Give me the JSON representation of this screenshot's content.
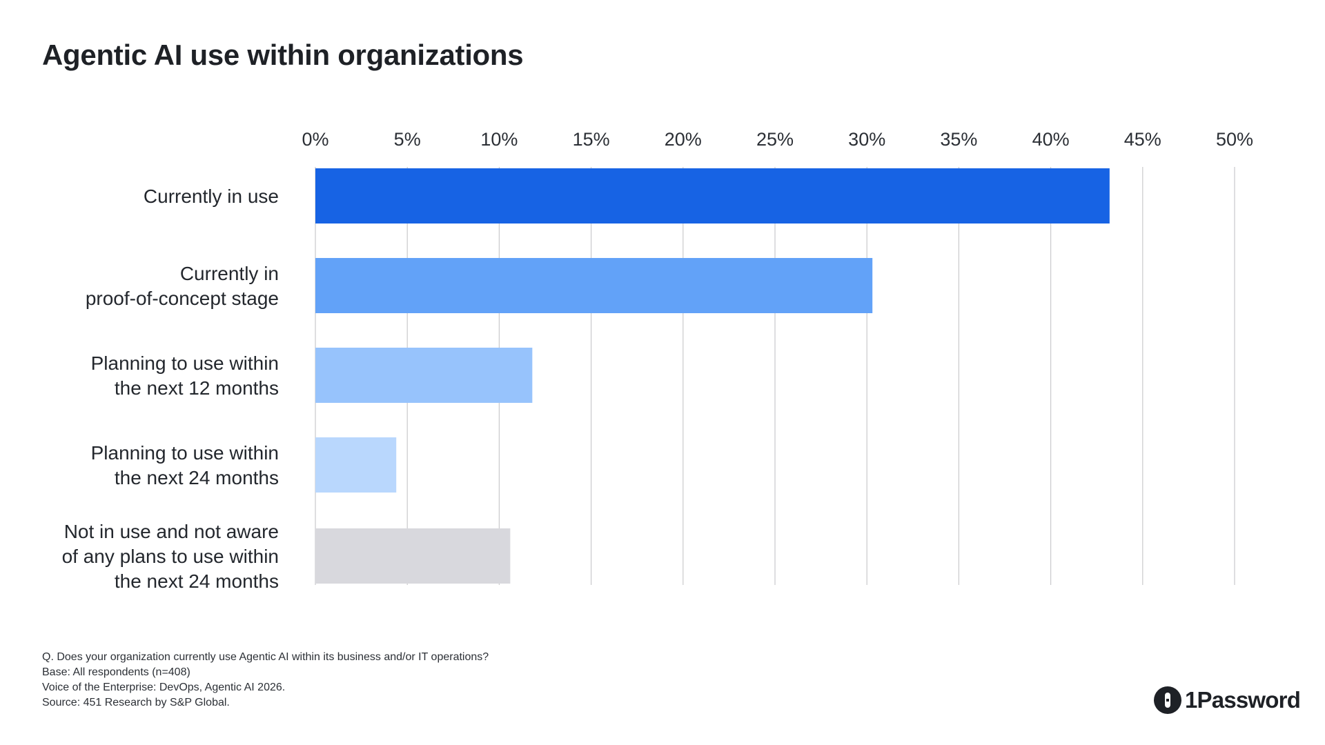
{
  "title": "Agentic AI use within organizations",
  "chart_data": {
    "type": "bar",
    "orientation": "horizontal",
    "categories": [
      [
        "Currently in use"
      ],
      [
        "Currently in",
        "proof-of-concept stage"
      ],
      [
        "Planning to use within",
        "the next 12 months"
      ],
      [
        "Planning to use within",
        "the next 24 months"
      ],
      [
        "Not in use and not aware",
        "of any plans to use within",
        "the next 24 months"
      ]
    ],
    "values": [
      43.2,
      30.3,
      11.8,
      4.4,
      10.6
    ],
    "colors": [
      "#1763e4",
      "#62a2f8",
      "#97c3fc",
      "#b9d7fd",
      "#d8d8dd"
    ],
    "xlim": [
      0,
      50
    ],
    "ticks": [
      0,
      5,
      10,
      15,
      20,
      25,
      30,
      35,
      40,
      45,
      50
    ],
    "tick_labels": [
      "0%",
      "5%",
      "10%",
      "15%",
      "20%",
      "25%",
      "30%",
      "35%",
      "40%",
      "45%",
      "50%"
    ],
    "axis_position": "top",
    "grid": true,
    "grid_color": "#c9c9cc"
  },
  "notes": {
    "question": "Q. Does your organization currently use Agentic AI within its business and/or IT operations?",
    "base": "Base: All respondents (n=408)",
    "survey": "Voice of the Enterprise: DevOps, Agentic AI 2026.",
    "source": "Source: 451 Research by S&P Global."
  },
  "brand": {
    "name": "1Password",
    "icon": "1password-logo-icon"
  }
}
